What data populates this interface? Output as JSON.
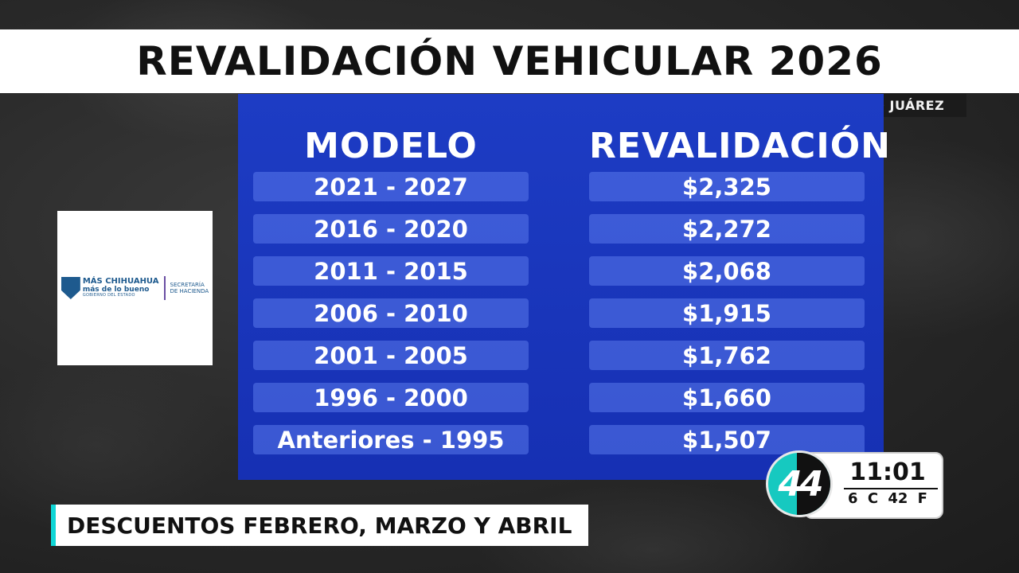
{
  "title": "REVALIDACIÓN VEHICULAR 2026",
  "city_tag": "CIUDAD JUÁREZ",
  "table": {
    "headers": [
      "MODELO",
      "REVALIDACIÓN"
    ],
    "rows": [
      {
        "modelo": "2021 - 2027",
        "revalidacion": "$2,325"
      },
      {
        "modelo": "2016 - 2020",
        "revalidacion": "$2,272"
      },
      {
        "modelo": "2011 - 2015",
        "revalidacion": "$2,068"
      },
      {
        "modelo": "2006 - 2010",
        "revalidacion": "$1,915"
      },
      {
        "modelo": "2001 - 2005",
        "revalidacion": "$1,762"
      },
      {
        "modelo": "1996 - 2000",
        "revalidacion": "$1,660"
      },
      {
        "modelo": "Anteriores - 1995",
        "revalidacion": "$1,507"
      }
    ]
  },
  "logo": {
    "main": "MÁS CHIHUAHUA",
    "sub": "más de lo bueno",
    "small": "GOBIERNO DEL ESTADO",
    "sec_line1": "SECRETARÍA",
    "sec_line2": "DE HACIENDA"
  },
  "lower_third": "DESCUENTOS FEBRERO, MARZO Y ABRIL",
  "clock": {
    "time": "11:01",
    "weather": "6 C  42 F"
  },
  "channel": "44",
  "colors": {
    "board": "#1d3cc4",
    "accent": "#0fd6d6",
    "channel": "#16c9c0"
  }
}
